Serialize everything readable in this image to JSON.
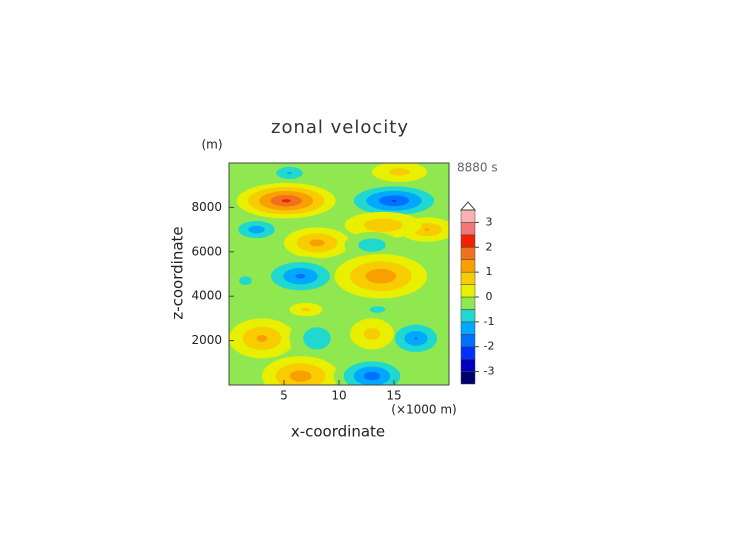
{
  "chart_data": {
    "type": "contour",
    "title": "zonal velocity",
    "xlabel": "x-coordinate",
    "ylabel": "z-coordinate",
    "xunit": "(×1000 m)",
    "yunit": "(m)",
    "time_label": "8880 s",
    "xlim": [
      0,
      20
    ],
    "ylim": [
      0,
      10000
    ],
    "xticks": [
      5,
      10,
      15
    ],
    "yticks": [
      2000,
      4000,
      6000,
      8000
    ],
    "background": -0.2,
    "blobs": [
      {
        "x": 5.5,
        "z": 9550,
        "rx": 2.2,
        "rz": 500,
        "value": -1.1
      },
      {
        "x": 15.5,
        "z": 9600,
        "rx": 2.5,
        "rz": 450,
        "value": 0.8
      },
      {
        "x": 5.2,
        "z": 8300,
        "rx": 4.5,
        "rz": 800,
        "value": 2.2
      },
      {
        "x": 15.0,
        "z": 8300,
        "rx": 4.8,
        "rz": 850,
        "value": -2.1
      },
      {
        "x": 2.5,
        "z": 7000,
        "rx": 2.6,
        "rz": 600,
        "value": -1.4
      },
      {
        "x": 18.0,
        "z": 7000,
        "rx": 2.5,
        "rz": 550,
        "value": 1.1
      },
      {
        "x": 14.0,
        "z": 7200,
        "rx": 3.5,
        "rz": 600,
        "value": 1.0
      },
      {
        "x": 8.0,
        "z": 6400,
        "rx": 3.0,
        "rz": 700,
        "value": 1.3
      },
      {
        "x": 13.0,
        "z": 6300,
        "rx": 2.5,
        "rz": 600,
        "value": -1.0
      },
      {
        "x": 6.5,
        "z": 4900,
        "rx": 3.8,
        "rz": 900,
        "value": -1.7
      },
      {
        "x": 13.8,
        "z": 4900,
        "rx": 4.2,
        "rz": 1000,
        "value": 1.5
      },
      {
        "x": 1.5,
        "z": 4700,
        "rx": 2.0,
        "rz": 700,
        "value": -0.7
      },
      {
        "x": 13.5,
        "z": 3400,
        "rx": 1.4,
        "rz": 300,
        "value": -1.0
      },
      {
        "x": 7.0,
        "z": 3400,
        "rx": 1.5,
        "rz": 300,
        "value": 0.7
      },
      {
        "x": 3.0,
        "z": 2100,
        "rx": 3.0,
        "rz": 900,
        "value": 1.2
      },
      {
        "x": 8.0,
        "z": 2100,
        "rx": 2.5,
        "rz": 1000,
        "value": -1.0
      },
      {
        "x": 17.0,
        "z": 2100,
        "rx": 2.8,
        "rz": 900,
        "value": -1.6
      },
      {
        "x": 13.0,
        "z": 2300,
        "rx": 2.0,
        "rz": 700,
        "value": 0.8
      },
      {
        "x": 6.5,
        "z": 400,
        "rx": 3.5,
        "rz": 900,
        "value": 1.4
      },
      {
        "x": 13.0,
        "z": 400,
        "rx": 3.5,
        "rz": 900,
        "value": -1.9
      }
    ],
    "levels": [
      -3.5,
      -3,
      -2.5,
      -2,
      -1.5,
      -1,
      -0.5,
      0,
      0.5,
      1,
      1.5,
      2,
      2.5,
      3,
      3.5
    ],
    "colors": [
      "#000070",
      "#0000c0",
      "#0030ff",
      "#0070ff",
      "#00a8ff",
      "#20d8d0",
      "#90e850",
      "#e8f000",
      "#f8cc00",
      "#f8a000",
      "#f07020",
      "#f02000",
      "#f07878",
      "#f8b0b0"
    ],
    "cticks": [
      -3,
      -2,
      -1,
      0,
      1,
      2,
      3
    ]
  }
}
